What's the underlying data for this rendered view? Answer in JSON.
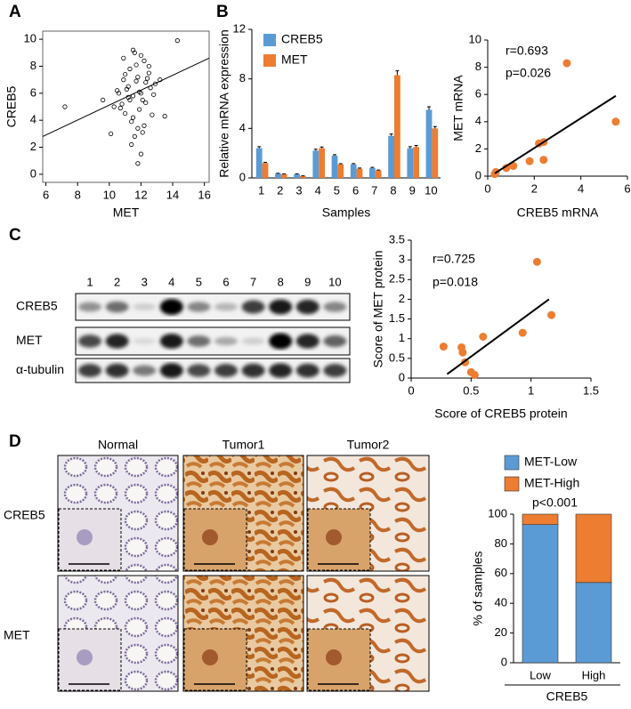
{
  "panel_labels": [
    "A",
    "B",
    "C",
    "D"
  ],
  "chart_data": [
    {
      "type": "scatter",
      "xlabel": "MET",
      "ylabel": "CREB5",
      "color": "#000000",
      "hollow": true,
      "x": [
        11.2,
        11.5,
        11.8,
        12.0,
        12.3,
        10.8,
        11.0,
        12.5,
        11.7,
        11.4,
        12.1,
        10.5,
        11.9,
        12.6,
        11.3,
        11.6,
        12.2,
        10.9,
        12.8,
        11.1,
        11.5,
        12.0,
        11.8,
        12.4,
        10.7,
        11.3,
        12.9,
        11.6,
        12.1,
        11.0,
        13.2,
        10.3,
        11.9,
        12.7,
        11.4,
        12.3,
        11.7,
        10.6,
        12.5,
        11.2,
        14.3,
        7.2,
        9.6,
        10.1,
        13.5,
        12.0,
        11.5,
        11.8,
        12.2,
        10.9
      ],
      "values": [
        6.5,
        5.8,
        7.2,
        6.0,
        6.8,
        5.2,
        4.5,
        7.5,
        8.1,
        3.9,
        5.5,
        6.2,
        4.8,
        6.4,
        7.8,
        2.8,
        8.4,
        7.0,
        5.9,
        6.3,
        4.2,
        8.8,
        3.4,
        7.1,
        4.9,
        5.5,
        6.7,
        9.0,
        3.1,
        7.4,
        7.0,
        5.0,
        6.1,
        4.4,
        2.2,
        5.3,
        6.9,
        6.0,
        8.0,
        5.7,
        9.9,
        5.0,
        5.5,
        3.0,
        4.3,
        1.5,
        9.2,
        0.8,
        3.6,
        8.6
      ],
      "trendline": {
        "x": [
          5.8,
          16.3
        ],
        "values": [
          2.8,
          8.6
        ]
      },
      "xlim": [
        5.8,
        16.3
      ],
      "xticks": [
        6,
        8,
        10,
        12,
        14,
        16
      ],
      "ylim": [
        -0.6,
        10.6
      ],
      "yticks": [
        0,
        2,
        4,
        6,
        8,
        10
      ]
    },
    {
      "type": "bar",
      "xlabel": "Samples",
      "ylabel": "Relative mRNA expression",
      "categories": [
        "1",
        "2",
        "3",
        "4",
        "5",
        "6",
        "7",
        "8",
        "9",
        "10"
      ],
      "series": [
        {
          "name": "CREB5",
          "color": "#5b9bd5",
          "values": [
            2.4,
            0.35,
            0.3,
            2.2,
            1.8,
            1.1,
            0.8,
            3.4,
            2.4,
            5.5
          ],
          "errors": [
            0.12,
            0.03,
            0.03,
            0.12,
            0.08,
            0.06,
            0.05,
            0.15,
            0.12,
            0.25
          ]
        },
        {
          "name": "MET",
          "color": "#ed7d31",
          "values": [
            1.2,
            0.3,
            0.15,
            2.4,
            1.1,
            0.75,
            0.6,
            8.3,
            2.5,
            4.0
          ],
          "errors": [
            0.06,
            0.03,
            0.02,
            0.1,
            0.05,
            0.05,
            0.04,
            0.35,
            0.12,
            0.15
          ]
        }
      ],
      "ylim": [
        0,
        12
      ],
      "yticks": [
        0,
        4,
        8,
        12
      ]
    },
    {
      "type": "scatter",
      "xlabel": "CREB5 mRNA",
      "ylabel": "MET mRNA",
      "color": "#ed7d31",
      "x": [
        2.4,
        0.35,
        0.3,
        2.2,
        1.8,
        1.1,
        0.8,
        3.4,
        2.4,
        5.5
      ],
      "values": [
        1.2,
        0.3,
        0.15,
        2.4,
        1.1,
        0.75,
        0.6,
        8.3,
        2.5,
        4.0
      ],
      "trendline": {
        "x": [
          0.3,
          5.5
        ],
        "values": [
          0.2,
          5.9
        ]
      },
      "annotations": [
        "r=0.693",
        "p=0.026"
      ],
      "xlim": [
        0,
        6
      ],
      "xticks": [
        0,
        2,
        4,
        6
      ],
      "ylim": [
        0,
        10
      ],
      "yticks": [
        0,
        2,
        4,
        6,
        8,
        10
      ]
    },
    {
      "type": "scatter",
      "xlabel": "Score of CREB5 protein",
      "ylabel": "Score of MET protein",
      "color": "#ed7d31",
      "x": [
        0.27,
        0.42,
        0.43,
        0.45,
        0.5,
        0.53,
        0.6,
        0.93,
        1.05,
        1.17
      ],
      "values": [
        0.8,
        0.78,
        0.65,
        0.4,
        0.15,
        0.08,
        1.05,
        1.15,
        2.95,
        1.6
      ],
      "trendline": {
        "x": [
          0.3,
          1.15
        ],
        "values": [
          0.1,
          2.0
        ]
      },
      "annotations": [
        "r=0.725",
        "p=0.018"
      ],
      "xlim": [
        0,
        1.5
      ],
      "xticks": [
        0,
        0.5,
        1,
        1.5
      ],
      "ylim": [
        0,
        3.5
      ],
      "yticks": [
        0,
        0.5,
        1,
        1.5,
        2,
        2.5,
        3,
        3.5
      ]
    },
    {
      "type": "stacked_bar",
      "xlabel": "CREB5",
      "ylabel": "% of samples",
      "categories": [
        "Low",
        "High"
      ],
      "series": [
        {
          "name": "MET-Low",
          "color": "#5b9bd5",
          "values": [
            93,
            54
          ]
        },
        {
          "name": "MET-High",
          "color": "#ed7d31",
          "values": [
            7,
            46
          ]
        }
      ],
      "annotations": [
        "p<0.001"
      ],
      "ylim": [
        0,
        100
      ],
      "yticks": [
        0,
        20,
        40,
        60,
        80,
        100
      ]
    }
  ],
  "blot": {
    "lanes": [
      "1",
      "2",
      "3",
      "4",
      "5",
      "6",
      "7",
      "8",
      "9",
      "10"
    ],
    "rows": [
      "CREB5",
      "MET",
      "α-tubulin"
    ]
  },
  "ihc": {
    "columns": [
      "Normal",
      "Tumor1",
      "Tumor2"
    ],
    "rows": [
      "CREB5",
      "MET"
    ]
  }
}
